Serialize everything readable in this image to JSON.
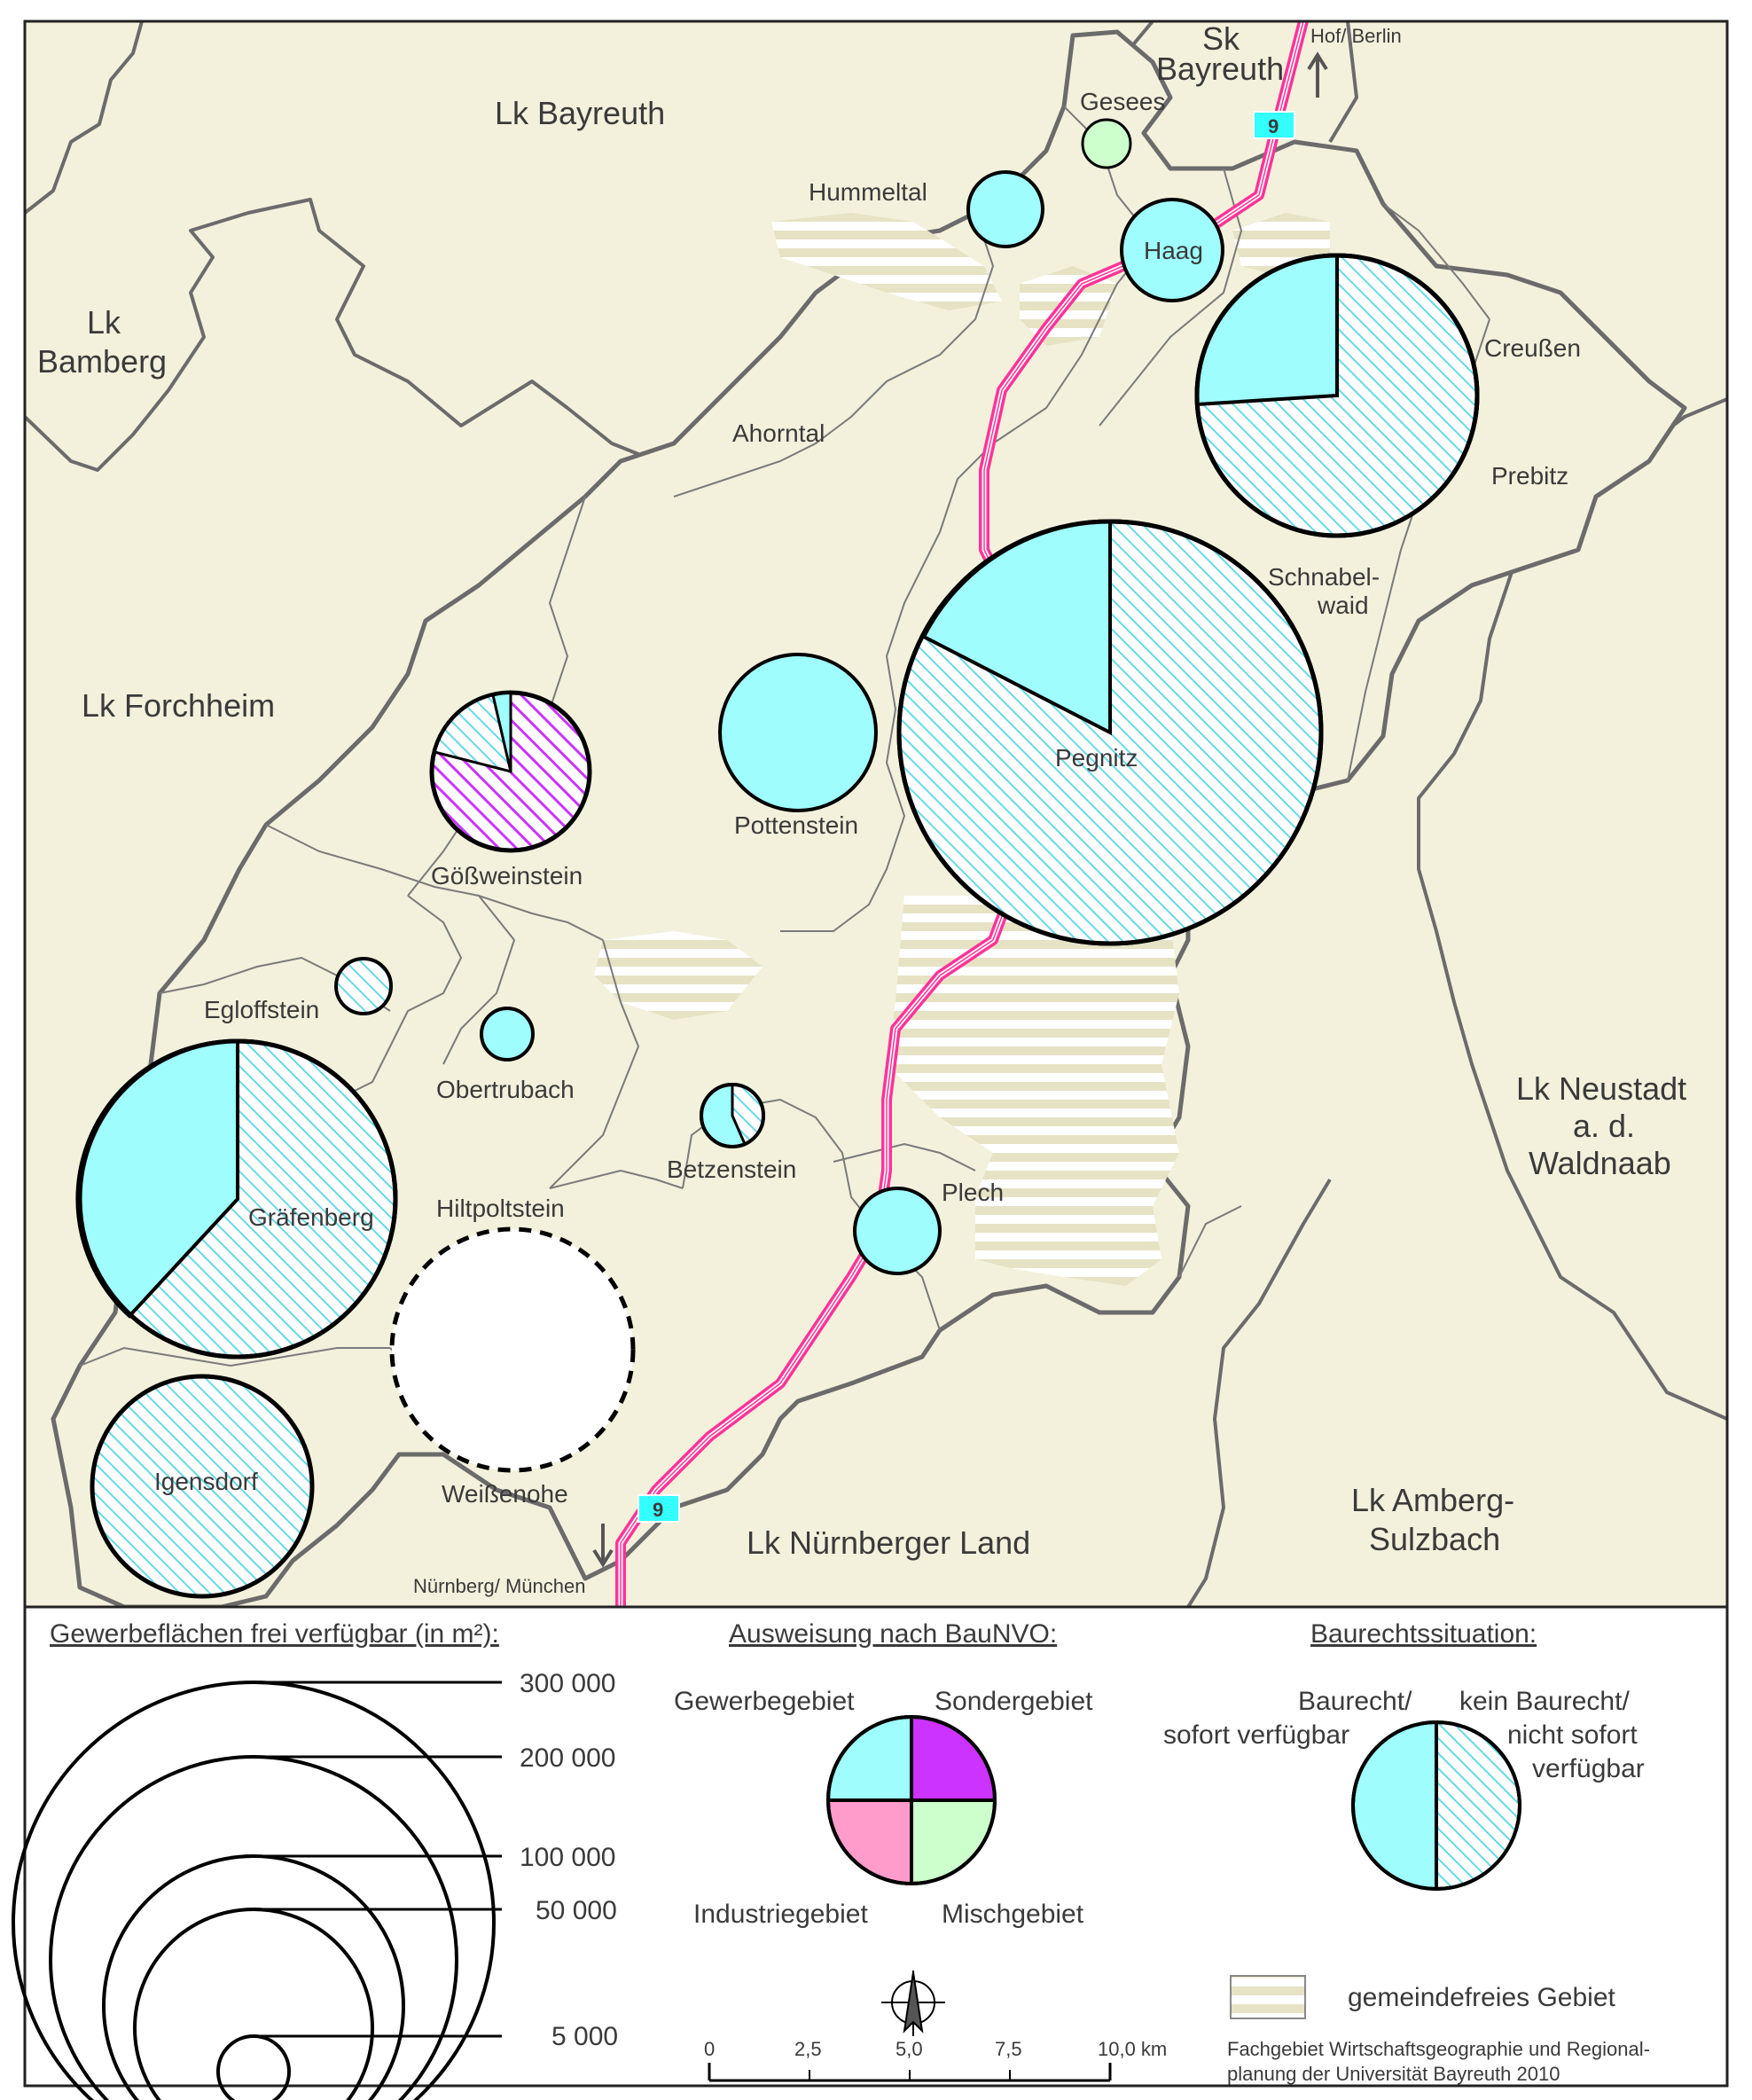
{
  "colors": {
    "land": "#f3f1dc",
    "outside": "#f3f1dc",
    "border": "#6b6b6b",
    "gewerbe": "#9ffdfd",
    "sonder": "#cc33ff",
    "industrie": "#ff9ccc",
    "misch": "#ccffcc",
    "hatch_cyan": "#66d9e8",
    "road": "#ff3399",
    "road_sign": "#33ffff",
    "free_area_stripe": "#e3dfc0"
  },
  "region_labels": {
    "lk_bayreuth": "Lk Bayreuth",
    "sk_bayreuth_1": "Sk",
    "sk_bayreuth_2": "Bayreuth",
    "lk_bamberg_1": "Lk",
    "lk_bamberg_2": "Bamberg",
    "lk_forchheim": "Lk Forchheim",
    "lk_neustadt_1": "Lk Neustadt",
    "lk_neustadt_2": "a. d.",
    "lk_neustadt_3": "Waldnaab",
    "lk_amberg_1": "Lk Amberg-",
    "lk_amberg_2": "Sulzbach",
    "lk_nuernberger": "Lk Nürnberger Land"
  },
  "municipalities": {
    "gesees": "Gesees",
    "hummeltal": "Hummeltal",
    "haag": "Haag",
    "creussen": "Creußen",
    "ahorntal": "Ahorntal",
    "prebitz": "Prebitz",
    "schnabelwaid_1": "Schnabel-",
    "schnabelwaid_2": "waid",
    "pegnitz": "Pegnitz",
    "pottenstein": "Pottenstein",
    "goessweinstein": "Gößweinstein",
    "egloffstein": "Egloffstein",
    "obertrubach": "Obertrubach",
    "betzenstein": "Betzenstein",
    "plech": "Plech",
    "graefenberg": "Gräfenberg",
    "hiltpoltstein": "Hiltpoltstein",
    "igensdorf": "Igensdorf",
    "weissenohe": "Weißenohe"
  },
  "road": {
    "number": "9",
    "north_destination": "Hof/ Berlin",
    "south_destination": "Nürnberg/ München"
  },
  "legend": {
    "size_title": "Gewerbeflächen frei verfügbar (in m²):",
    "size_values": [
      "300 000",
      "200 000",
      "100 000",
      "50 000",
      "5 000"
    ],
    "bauNVO_title": "Ausweisung nach BauNVO:",
    "gewerbegebiet": "Gewerbegebiet",
    "sondergebiet": "Sondergebiet",
    "industriegebiet": "Industriegebiet",
    "mischgebiet": "Mischgebiet",
    "baurecht_title": "Baurechtssituation:",
    "baurecht_1": "Baurecht/",
    "baurecht_2": "sofort verfügbar",
    "kein_1": "kein Baurecht/",
    "kein_2": "nicht sofort",
    "kein_3": "verfügbar",
    "gemeindefrei": "gemeindefreies Gebiet",
    "scale_ticks": [
      "0",
      "2,5",
      "5,0",
      "7,5",
      "10,0 km"
    ],
    "credit_1": "Fachgebiet Wirtschaftsgeographie und Regional-",
    "credit_2": "planung der Universität Bayreuth 2010"
  }
}
